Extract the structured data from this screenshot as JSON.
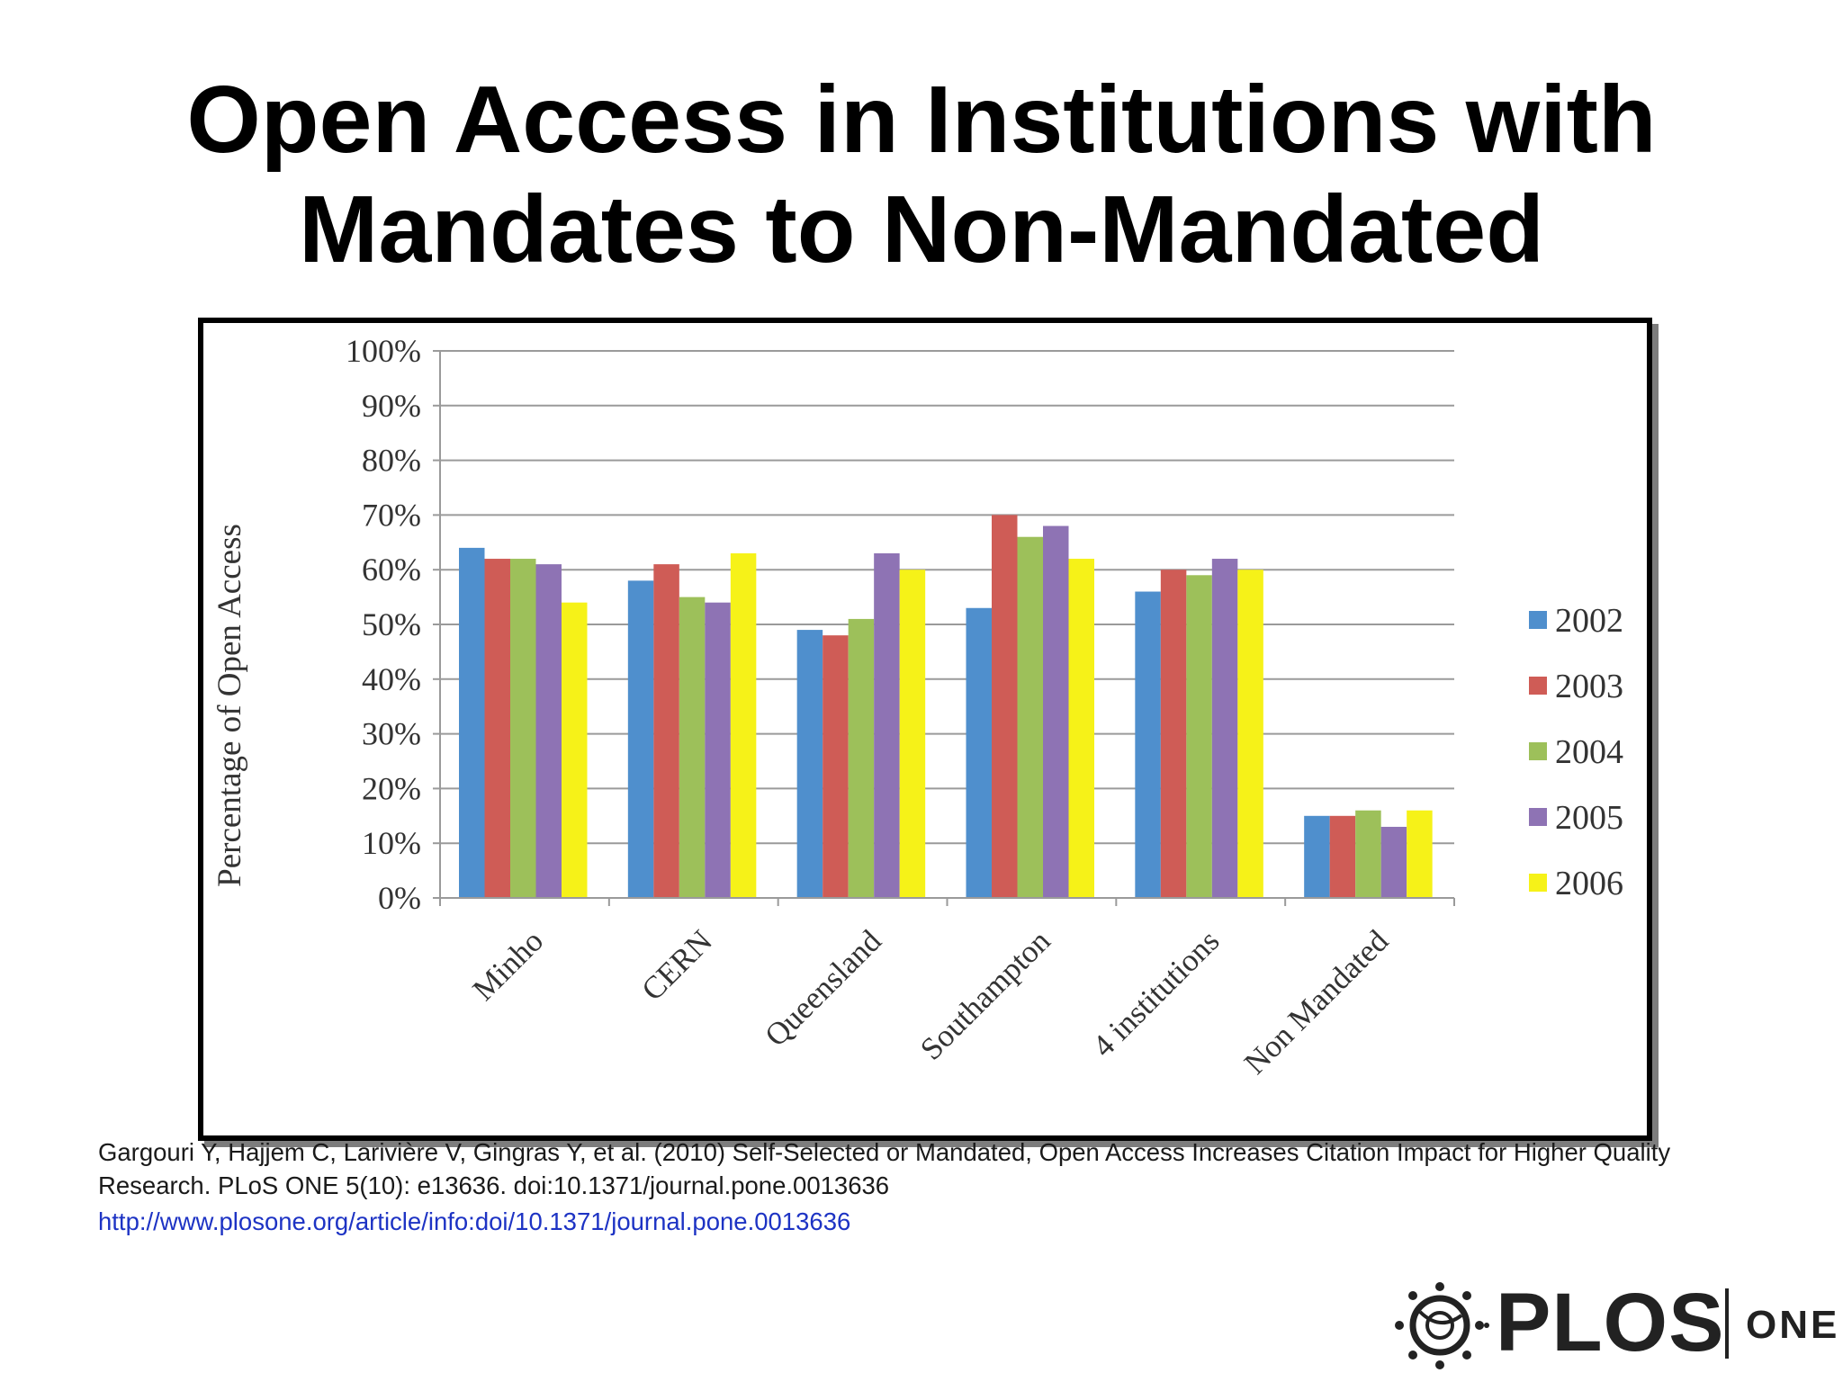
{
  "slide": {
    "title_line1": "Open Access in Institutions with",
    "title_line2": "Mandates to Non-Mandated"
  },
  "chart_data": {
    "type": "bar",
    "ylabel": "Percentage of Open Access",
    "xlabel": "",
    "ylim": [
      0,
      100
    ],
    "yticks": [
      "0%",
      "10%",
      "20%",
      "30%",
      "40%",
      "50%",
      "60%",
      "70%",
      "80%",
      "90%",
      "100%"
    ],
    "grid": true,
    "legend_position": "right",
    "categories": [
      "Minho",
      "CERN",
      "Queensland",
      "Southampton",
      "4 institutions",
      "Non Mandated"
    ],
    "series": [
      {
        "name": "2002",
        "color": "#4f8fcd",
        "values": [
          64,
          58,
          49,
          53,
          56,
          15
        ]
      },
      {
        "name": "2003",
        "color": "#cf5c56",
        "values": [
          62,
          61,
          48,
          70,
          60,
          15
        ]
      },
      {
        "name": "2004",
        "color": "#9dc05a",
        "values": [
          62,
          55,
          51,
          66,
          59,
          16
        ]
      },
      {
        "name": "2005",
        "color": "#8e73b4",
        "values": [
          61,
          54,
          63,
          68,
          62,
          13
        ]
      },
      {
        "name": "2006",
        "color": "#f6f218",
        "values": [
          54,
          63,
          60,
          62,
          60,
          16
        ]
      }
    ]
  },
  "citation": {
    "text": "Gargouri Y, Hajjem C, Larivière V, Gingras Y, et al. (2010) Self-Selected or Mandated, Open Access Increases Citation Impact for Higher Quality Research. PLoS ONE 5(10): e13636. doi:10.1371/journal.pone.0013636",
    "url": "http://www.plosone.org/article/info:doi/10.1371/journal.pone.0013636"
  },
  "logo": {
    "brand": "PLOS",
    "journal": "ONE"
  }
}
